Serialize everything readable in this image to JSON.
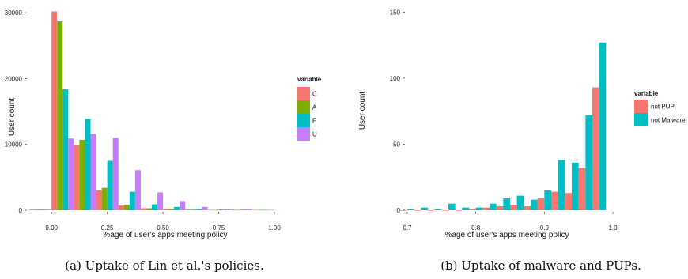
{
  "chart_data": [
    {
      "type": "bar",
      "xlabel": "%age of user's apps meeting policy",
      "ylabel": "User count",
      "xlim": [
        -0.1,
        1.0
      ],
      "ylim": [
        0,
        30500
      ],
      "xticks": [
        "0.00",
        "0.25",
        "0.50",
        "0.75",
        "1.00"
      ],
      "yticks": [
        "0",
        "10000",
        "20000",
        "30000"
      ],
      "legend": {
        "title": "variable",
        "position": "right"
      },
      "bin_width": 0.1,
      "bin_centers": [
        -0.05,
        0.05,
        0.15,
        0.25,
        0.35,
        0.45,
        0.55,
        0.65,
        0.75,
        0.85,
        0.95
      ],
      "series": [
        {
          "name": "C",
          "color": "#F8766D",
          "values": [
            100,
            30200,
            9900,
            3000,
            700,
            300,
            200,
            100,
            50,
            100,
            50
          ]
        },
        {
          "name": "A",
          "color": "#7CAE00",
          "values": [
            100,
            28700,
            10700,
            3400,
            800,
            300,
            200,
            100,
            50,
            50,
            50
          ]
        },
        {
          "name": "F",
          "color": "#00BFC4",
          "values": [
            100,
            18400,
            13900,
            7500,
            2800,
            900,
            500,
            200,
            100,
            100,
            50
          ]
        },
        {
          "name": "U",
          "color": "#C77CFF",
          "values": [
            100,
            10900,
            11600,
            11000,
            6100,
            2700,
            1400,
            500,
            200,
            200,
            50
          ]
        }
      ],
      "caption": "(a) Uptake of Lin et al.'s policies."
    },
    {
      "type": "bar",
      "xlabel": "%age of user's apps meeting policy",
      "ylabel": "User count",
      "xlim": [
        0.7,
        1.0
      ],
      "ylim": [
        0,
        152
      ],
      "xticks": [
        "0.7",
        "0.8",
        "0.9",
        "1.0"
      ],
      "yticks": [
        "0",
        "50",
        "100",
        "150"
      ],
      "legend": {
        "title": "variable",
        "position": "right"
      },
      "bin_width": 0.02,
      "bin_centers": [
        0.7,
        0.72,
        0.74,
        0.76,
        0.78,
        0.8,
        0.82,
        0.84,
        0.86,
        0.88,
        0.9,
        0.92,
        0.94,
        0.96,
        0.98
      ],
      "series": [
        {
          "name": "not PUP",
          "color": "#F8766D",
          "values": [
            0,
            0,
            0,
            0,
            0,
            1,
            2,
            3,
            4,
            3,
            9,
            14,
            13,
            32,
            93
          ]
        },
        {
          "name": "not Malware",
          "color": "#00BFC4",
          "values": [
            1,
            2,
            1,
            5,
            2,
            2,
            5,
            9,
            11,
            8,
            15,
            38,
            36,
            72,
            127
          ]
        }
      ],
      "caption": "(b) Uptake of malware and PUPs."
    }
  ]
}
